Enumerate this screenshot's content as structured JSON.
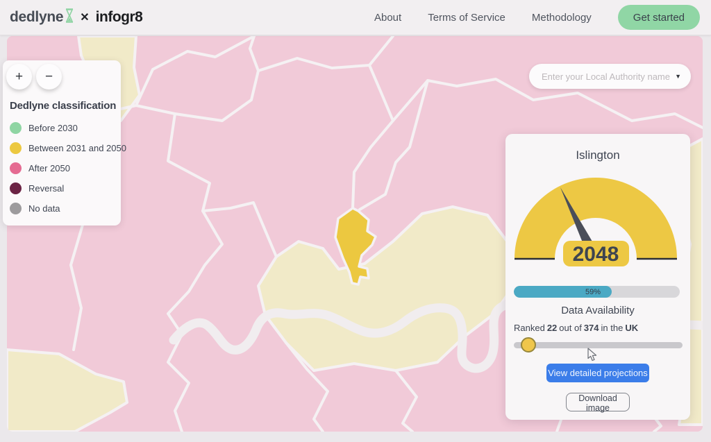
{
  "brand": {
    "dedlyne": "dedlyne",
    "separator": "✕",
    "infogr8": "infogr8"
  },
  "nav": {
    "links": [
      "About",
      "Terms of Service",
      "Methodology"
    ],
    "cta_label": "Get started",
    "cta_color": "#90d6a5"
  },
  "search": {
    "placeholder": "Enter your Local Authority name",
    "caret": "▼"
  },
  "legend": {
    "zoom_in_label": "+",
    "zoom_out_label": "−",
    "title": "Dedlyne classification",
    "items": [
      {
        "label": "Before 2030",
        "color": "#8fd5a3"
      },
      {
        "label": "Between 2031 and 2050",
        "color": "#ecc840"
      },
      {
        "label": "After 2050",
        "color": "#e56b92"
      },
      {
        "label": "Reversal",
        "color": "#6b2344"
      },
      {
        "label": "No data",
        "color": "#9d9b9d"
      }
    ]
  },
  "panel": {
    "title": "Islington",
    "gauge": {
      "value": "2048",
      "arc_color": "#edc844",
      "needle_color": "#4a4e59"
    },
    "availability": {
      "percent": 59,
      "percent_label": "59%",
      "label": "Data Availability",
      "bar_color": "#4ba9c4"
    },
    "rank": {
      "prefix": "Ranked",
      "value": "22",
      "middle": "out of",
      "total": "374",
      "suffix": "in the",
      "region": "UK"
    },
    "slider": {
      "handle_color": "#efc64b"
    },
    "primary_button": "View detailed projections",
    "secondary_button": "Download image"
  },
  "map": {
    "highlighted_region": "Islington",
    "colors": {
      "region_after_2050": "#f1cad8",
      "region_between": "#ecc840",
      "region_beige": "#f1eac8",
      "border": "#f5f1f3",
      "river": "#f1edef"
    }
  }
}
